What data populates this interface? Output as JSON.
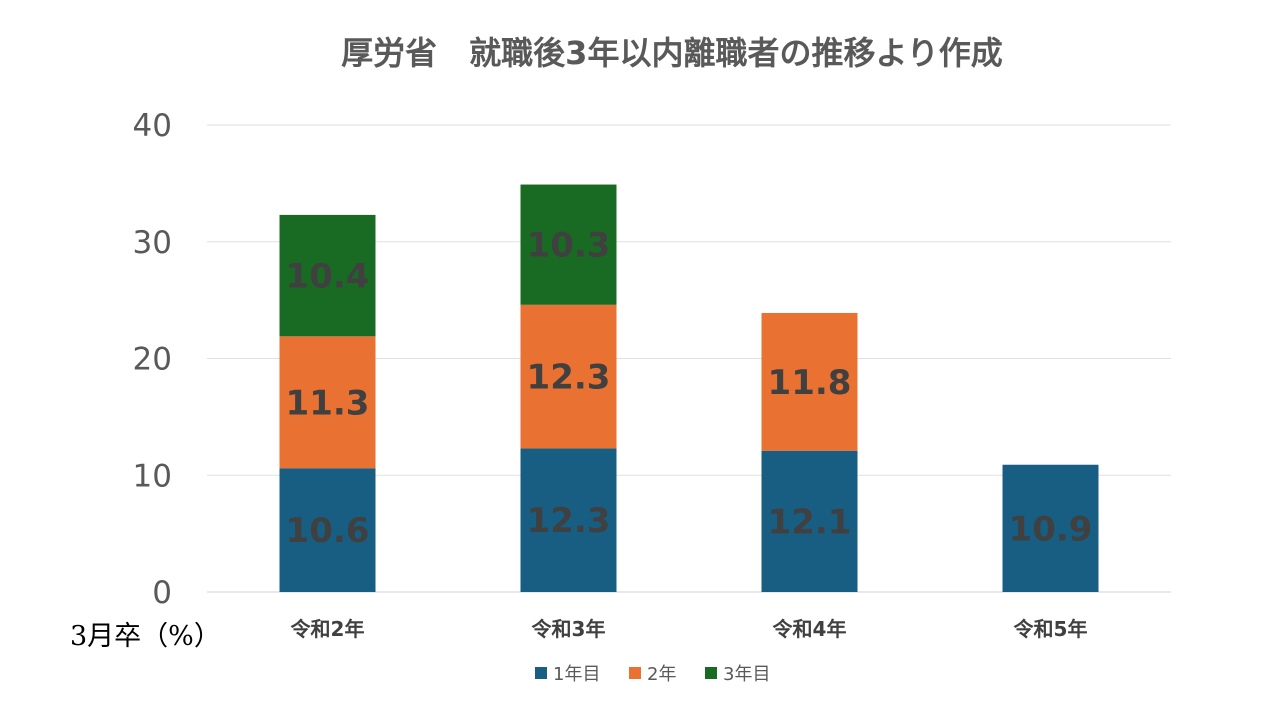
{
  "chart_data": {
    "type": "bar",
    "stacked": true,
    "title": "厚労省　就職後3年以内離職者の推移より作成",
    "categories": [
      "令和2年",
      "令和3年",
      "令和4年",
      "令和5年"
    ],
    "series": [
      {
        "name": "1年目",
        "color": "#175E82",
        "values": [
          10.6,
          12.3,
          12.1,
          10.9
        ]
      },
      {
        "name": "2年",
        "color": "#E97132",
        "values": [
          11.3,
          12.3,
          11.8,
          null
        ]
      },
      {
        "name": "3年目",
        "color": "#196B24",
        "values": [
          10.4,
          10.3,
          null,
          null
        ]
      }
    ],
    "ylim": [
      0,
      40
    ],
    "yticks": [
      "0",
      "10",
      "20",
      "30",
      "40"
    ],
    "grid": true,
    "legend_position": "bottom",
    "x_note": "3月卒（%）"
  }
}
